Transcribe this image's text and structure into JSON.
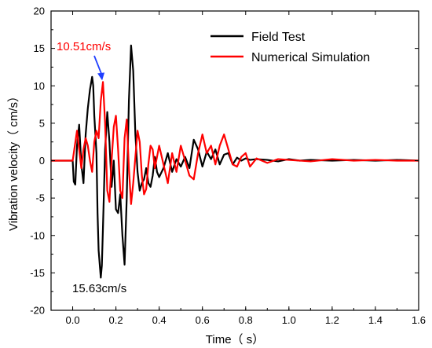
{
  "chart_data": {
    "type": "line",
    "xlabel": "Time（ s）",
    "ylabel": "Vibration velocity（ cm/s）",
    "xlim": [
      -0.1,
      1.6
    ],
    "ylim": [
      -20,
      20
    ],
    "x_ticks": [
      "0.0",
      "0.2",
      "0.4",
      "0.6",
      "0.8",
      "1.0",
      "1.2",
      "1.4",
      "1.6"
    ],
    "y_ticks": [
      "-20",
      "-15",
      "-10",
      "-5",
      "0",
      "5",
      "10",
      "15",
      "20"
    ],
    "legend_position": "top-right",
    "series": [
      {
        "name": "Field Test",
        "color": "#000000",
        "x": [
          -0.1,
          0.0,
          0.005,
          0.012,
          0.02,
          0.03,
          0.04,
          0.05,
          0.06,
          0.07,
          0.08,
          0.09,
          0.095,
          0.1,
          0.11,
          0.115,
          0.12,
          0.13,
          0.135,
          0.14,
          0.15,
          0.16,
          0.17,
          0.18,
          0.19,
          0.2,
          0.21,
          0.22,
          0.23,
          0.24,
          0.25,
          0.26,
          0.27,
          0.28,
          0.29,
          0.3,
          0.31,
          0.32,
          0.33,
          0.34,
          0.35,
          0.36,
          0.37,
          0.38,
          0.39,
          0.4,
          0.42,
          0.44,
          0.46,
          0.48,
          0.5,
          0.52,
          0.54,
          0.56,
          0.58,
          0.6,
          0.62,
          0.64,
          0.66,
          0.68,
          0.7,
          0.72,
          0.74,
          0.76,
          0.78,
          0.8,
          0.82,
          0.85,
          0.9,
          0.95,
          1.0,
          1.05,
          1.1,
          1.2,
          1.3,
          1.4,
          1.5,
          1.6
        ],
        "y": [
          0,
          0,
          -2.8,
          -3.2,
          2.0,
          4.8,
          -0.5,
          -3.0,
          3.5,
          7.0,
          9.5,
          11.2,
          10.0,
          6.0,
          1.0,
          -7.0,
          -12.0,
          -15.63,
          -14.0,
          -9.0,
          1.5,
          6.5,
          2.5,
          -3.5,
          0.0,
          -6.5,
          -7.0,
          -4.5,
          -10.0,
          -13.9,
          -5.0,
          8.0,
          15.4,
          12.0,
          3.5,
          -1.5,
          -4.0,
          -3.0,
          -2.5,
          -1.0,
          -3.0,
          -3.5,
          -2.0,
          0.5,
          -1.5,
          -2.2,
          -1.0,
          1.0,
          -1.5,
          0.2,
          -0.8,
          0.5,
          -1.0,
          2.8,
          1.5,
          -0.8,
          1.2,
          0.2,
          1.5,
          -0.5,
          0.8,
          1.0,
          -0.5,
          0.4,
          0.0,
          0.3,
          0.1,
          0.2,
          0.1,
          -0.1,
          0.2,
          0.0,
          0.1,
          0.0,
          0.1,
          0.0,
          0.1,
          0.0
        ]
      },
      {
        "name": "Numerical Simulation",
        "color": "#ff0000",
        "x": [
          -0.1,
          0.0,
          0.01,
          0.02,
          0.03,
          0.04,
          0.05,
          0.06,
          0.07,
          0.08,
          0.09,
          0.1,
          0.11,
          0.12,
          0.13,
          0.14,
          0.15,
          0.16,
          0.17,
          0.18,
          0.19,
          0.2,
          0.21,
          0.22,
          0.23,
          0.24,
          0.25,
          0.26,
          0.27,
          0.28,
          0.29,
          0.3,
          0.31,
          0.32,
          0.33,
          0.34,
          0.35,
          0.36,
          0.37,
          0.38,
          0.4,
          0.42,
          0.44,
          0.46,
          0.48,
          0.5,
          0.52,
          0.54,
          0.56,
          0.58,
          0.6,
          0.62,
          0.64,
          0.66,
          0.68,
          0.7,
          0.72,
          0.74,
          0.76,
          0.78,
          0.8,
          0.82,
          0.85,
          0.9,
          0.95,
          1.0,
          1.1,
          1.2,
          1.3,
          1.4,
          1.5,
          1.6
        ],
        "y": [
          0,
          0,
          2.0,
          4.0,
          1.5,
          -1.0,
          1.5,
          3.0,
          2.0,
          0.0,
          -1.5,
          2.5,
          4.0,
          3.0,
          8.0,
          10.51,
          5.0,
          -4.0,
          -5.5,
          0.0,
          4.5,
          6.0,
          1.5,
          -4.0,
          -5.0,
          3.0,
          5.5,
          -1.0,
          -5.8,
          -3.0,
          0.5,
          4.0,
          2.5,
          -2.0,
          -4.5,
          -3.8,
          -0.5,
          2.0,
          1.5,
          -1.0,
          2.0,
          -0.5,
          -3.0,
          1.0,
          -1.5,
          2.0,
          0.0,
          -2.0,
          -2.5,
          1.0,
          3.5,
          1.0,
          2.0,
          -0.5,
          2.0,
          3.5,
          1.5,
          -0.5,
          -0.8,
          0.5,
          1.0,
          -0.8,
          0.3,
          -0.3,
          0.2,
          0.1,
          -0.1,
          0.2,
          0.0,
          0.1,
          0.0,
          0.0
        ]
      }
    ],
    "annotations": [
      {
        "text": "10.51cm/s",
        "color": "#ff0000",
        "x": 0.14,
        "y": 10.51
      },
      {
        "text": "15.63cm/s",
        "color": "#000000",
        "x": 0.13,
        "y": -15.63
      }
    ],
    "arrow_color": "#1f3fff"
  }
}
